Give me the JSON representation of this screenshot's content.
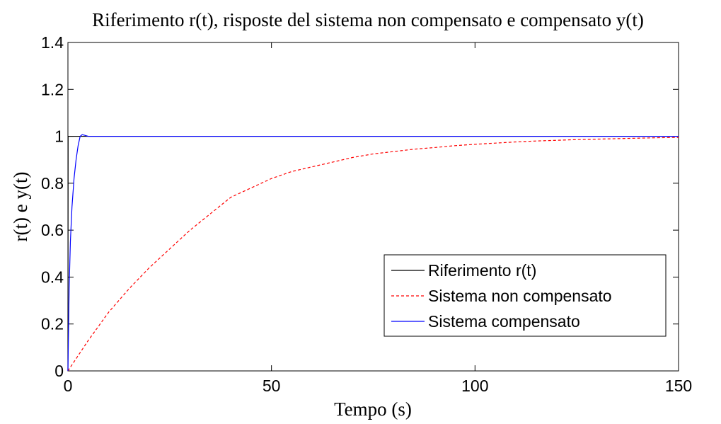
{
  "chart_data": {
    "type": "line",
    "title": "Riferimento r(t), risposte del sistema non compensato e compensato y(t)",
    "xlabel": "Tempo (s)",
    "ylabel": "r(t) e y(t)",
    "xlim": [
      0,
      150
    ],
    "ylim": [
      0,
      1.4
    ],
    "xticks": [
      0,
      50,
      100,
      150
    ],
    "xtick_labels": [
      "0",
      "50",
      "100",
      "150"
    ],
    "yticks": [
      0,
      0.2,
      0.4,
      0.6,
      0.8,
      1,
      1.2,
      1.4
    ],
    "ytick_labels": [
      "0",
      "0.2",
      "0.4",
      "0.6",
      "0.8",
      "1",
      "1.2",
      "1.4"
    ],
    "grid": false,
    "legend_position": "lower-right",
    "series": [
      {
        "name": "Riferimento r(t)",
        "color": "#000000",
        "style": "solid",
        "x": [
          0,
          0.05,
          150
        ],
        "y": [
          0,
          1,
          1
        ]
      },
      {
        "name": "Sistema non compensato",
        "color": "#ff0000",
        "style": "dashed",
        "x": [
          0,
          5,
          10,
          15,
          20,
          25,
          30,
          35,
          40,
          45,
          50,
          55,
          60,
          65,
          70,
          75,
          80,
          85,
          90,
          95,
          100,
          105,
          110,
          115,
          120,
          125,
          130,
          135,
          140,
          145,
          150
        ],
        "y": [
          0,
          0.13,
          0.25,
          0.35,
          0.44,
          0.52,
          0.6,
          0.67,
          0.74,
          0.78,
          0.82,
          0.85,
          0.87,
          0.89,
          0.91,
          0.925,
          0.935,
          0.945,
          0.952,
          0.96,
          0.966,
          0.971,
          0.976,
          0.98,
          0.983,
          0.986,
          0.988,
          0.99,
          0.992,
          0.994,
          0.995
        ]
      },
      {
        "name": "Sistema compensato",
        "color": "#0000ff",
        "style": "solid",
        "x": [
          0,
          0.3,
          0.6,
          1,
          1.5,
          2,
          2.5,
          3,
          3.5,
          4,
          5,
          6,
          8,
          150
        ],
        "y": [
          0,
          0.35,
          0.55,
          0.7,
          0.82,
          0.9,
          0.96,
          1.0,
          1.007,
          1.005,
          1.0,
          1.0,
          1.0,
          1.0
        ]
      }
    ]
  }
}
